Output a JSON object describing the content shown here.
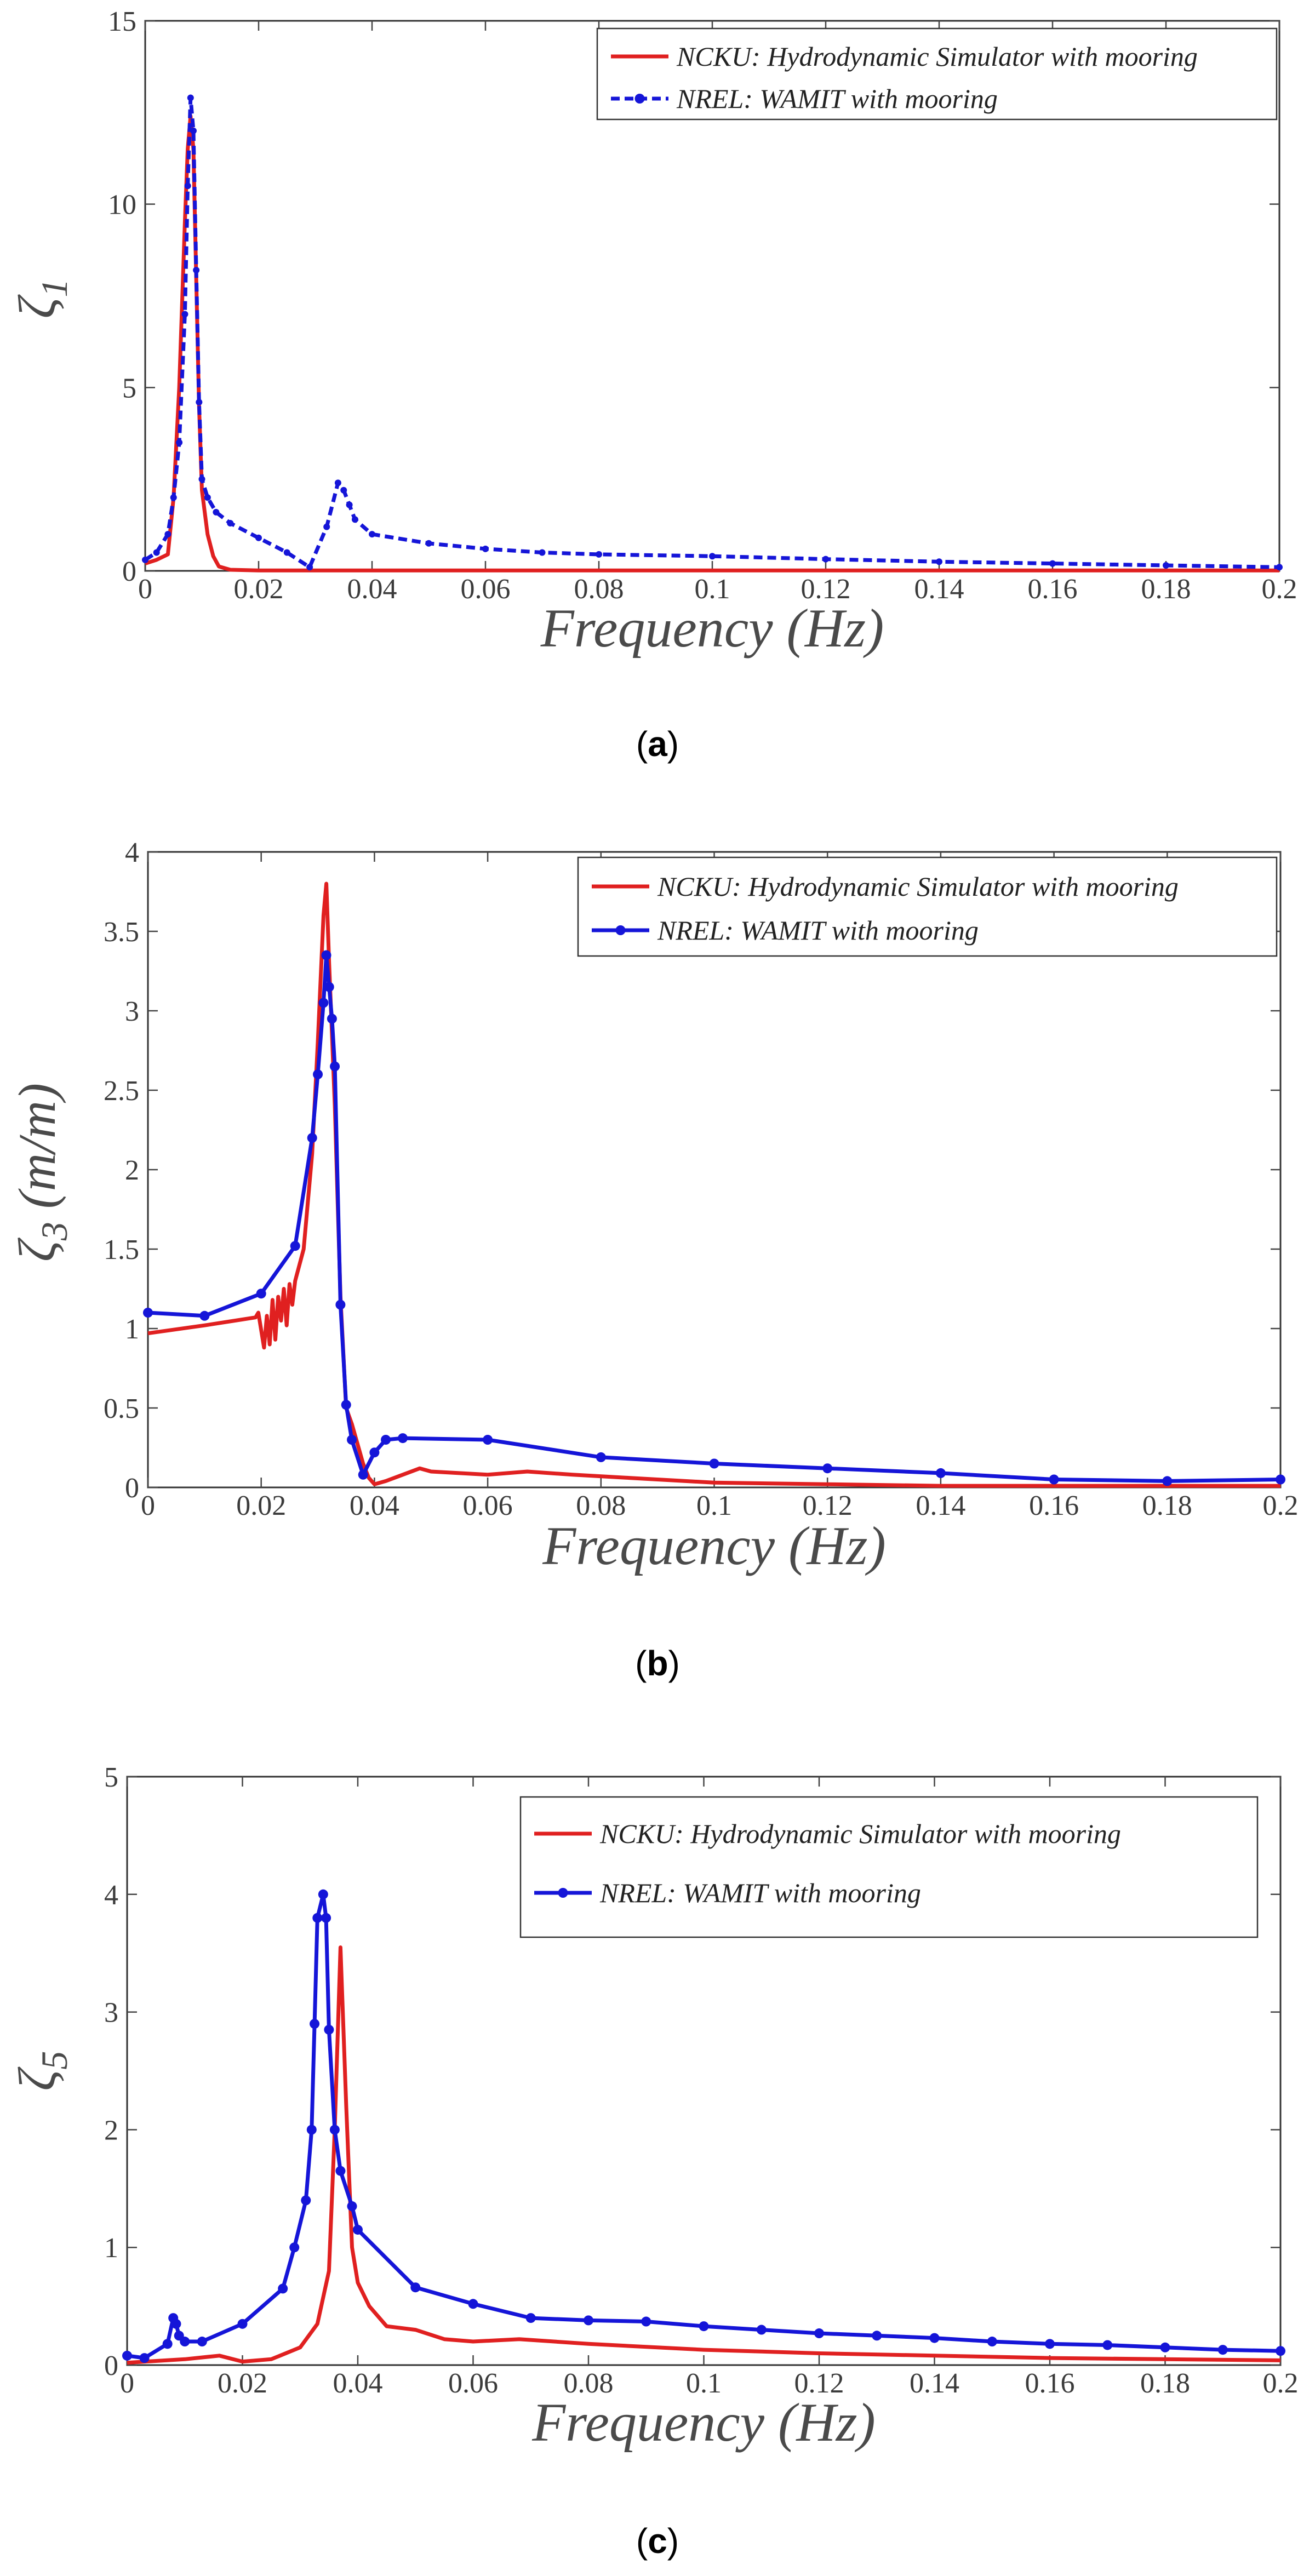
{
  "figure": {
    "panels": [
      "a",
      "b",
      "c"
    ]
  },
  "chart_data": [
    {
      "type": "line",
      "panel": "a",
      "caption_label": "a",
      "title": "",
      "xlabel": "Frequency (Hz)",
      "ylabel": "ζ₁",
      "ylabel_main": "ζ",
      "ylabel_sub": "1",
      "ylabel_unit": "",
      "xlim": [
        0,
        0.2
      ],
      "ylim": [
        0,
        15
      ],
      "xticks": [
        0,
        0.02,
        0.04,
        0.06,
        0.08,
        0.1,
        0.12,
        0.14,
        0.16,
        0.18,
        0.2
      ],
      "xtick_labels": [
        "0",
        "0.02",
        "0.04",
        "0.06",
        "0.08",
        "0.1",
        "0.12",
        "0.14",
        "0.16",
        "0.18",
        "0.2"
      ],
      "yticks": [
        0,
        5,
        10,
        15
      ],
      "ytick_labels": [
        "0",
        "5",
        "10",
        "15"
      ],
      "legend_position": "top-right",
      "series": [
        {
          "name": "NCKU: Hydrodynamic Simulator with mooring",
          "color": "#e02020",
          "style": "solid",
          "markers": false,
          "x": [
            0,
            0.002,
            0.004,
            0.005,
            0.006,
            0.007,
            0.0075,
            0.008,
            0.0085,
            0.009,
            0.0095,
            0.01,
            0.011,
            0.012,
            0.013,
            0.015,
            0.02,
            0.05,
            0.1,
            0.2
          ],
          "y": [
            0.2,
            0.3,
            0.45,
            2.0,
            5.0,
            9.5,
            11.5,
            12.4,
            11.5,
            8.0,
            4.5,
            2.2,
            1.0,
            0.4,
            0.12,
            0.03,
            0.01,
            0.01,
            0.01,
            0.01
          ]
        },
        {
          "name": "NREL: WAMIT with mooring",
          "color": "#1515d8",
          "style": "dashed",
          "markers": true,
          "x": [
            0,
            0.002,
            0.004,
            0.005,
            0.006,
            0.007,
            0.0075,
            0.008,
            0.0085,
            0.009,
            0.0095,
            0.01,
            0.011,
            0.0125,
            0.015,
            0.02,
            0.025,
            0.029,
            0.032,
            0.034,
            0.035,
            0.036,
            0.037,
            0.04,
            0.05,
            0.06,
            0.07,
            0.08,
            0.1,
            0.12,
            0.14,
            0.16,
            0.18,
            0.2
          ],
          "y": [
            0.3,
            0.5,
            1.0,
            2.0,
            3.5,
            7.0,
            10.5,
            12.9,
            12.0,
            8.2,
            4.6,
            2.5,
            2.0,
            1.6,
            1.3,
            0.9,
            0.5,
            0.1,
            1.2,
            2.4,
            2.2,
            1.8,
            1.4,
            1.0,
            0.75,
            0.6,
            0.5,
            0.45,
            0.4,
            0.32,
            0.25,
            0.2,
            0.15,
            0.1
          ]
        }
      ]
    },
    {
      "type": "line",
      "panel": "b",
      "caption_label": "b",
      "title": "",
      "xlabel": "Frequency (Hz)",
      "ylabel": "ζ₃ (m/m)",
      "ylabel_main": "ζ",
      "ylabel_sub": "3",
      "ylabel_unit": "(m/m)",
      "xlim": [
        0,
        0.2
      ],
      "ylim": [
        0,
        4
      ],
      "xticks": [
        0,
        0.02,
        0.04,
        0.06,
        0.08,
        0.1,
        0.12,
        0.14,
        0.16,
        0.18,
        0.2
      ],
      "xtick_labels": [
        "0",
        "0.02",
        "0.04",
        "0.06",
        "0.08",
        "0.1",
        "0.12",
        "0.14",
        "0.16",
        "0.18",
        "0.2"
      ],
      "yticks": [
        0,
        0.5,
        1,
        1.5,
        2,
        2.5,
        3,
        3.5,
        4
      ],
      "ytick_labels": [
        "0",
        "0.5",
        "1",
        "1.5",
        "2",
        "2.5",
        "3",
        "3.5",
        "4"
      ],
      "legend_position": "top-right",
      "series": [
        {
          "name": "NCKU: Hydrodynamic Simulator with mooring",
          "color": "#e02020",
          "style": "solid",
          "markers": false,
          "x": [
            0,
            0.01,
            0.019,
            0.0195,
            0.0205,
            0.021,
            0.0215,
            0.022,
            0.0225,
            0.023,
            0.0235,
            0.024,
            0.0245,
            0.025,
            0.0255,
            0.026,
            0.0275,
            0.029,
            0.03,
            0.031,
            0.0315,
            0.032,
            0.033,
            0.034,
            0.035,
            0.036,
            0.038,
            0.039,
            0.04,
            0.042,
            0.045,
            0.048,
            0.05,
            0.055,
            0.06,
            0.067,
            0.075,
            0.085,
            0.1,
            0.12,
            0.14,
            0.16,
            0.18,
            0.2
          ],
          "y": [
            0.97,
            1.02,
            1.07,
            1.1,
            0.88,
            1.08,
            0.9,
            1.18,
            0.93,
            1.2,
            1.05,
            1.25,
            1.02,
            1.28,
            1.15,
            1.3,
            1.5,
            2.1,
            2.8,
            3.6,
            3.8,
            3.3,
            2.4,
            1.2,
            0.5,
            0.4,
            0.15,
            0.06,
            0.02,
            0.04,
            0.08,
            0.12,
            0.1,
            0.09,
            0.08,
            0.1,
            0.08,
            0.06,
            0.03,
            0.02,
            0.01,
            0.01,
            0.01,
            0.01
          ]
        },
        {
          "name": "NREL: WAMIT with mooring",
          "color": "#1515d8",
          "style": "solid",
          "markers": true,
          "x": [
            0,
            0.01,
            0.02,
            0.026,
            0.029,
            0.03,
            0.031,
            0.0315,
            0.032,
            0.0325,
            0.033,
            0.034,
            0.035,
            0.036,
            0.038,
            0.04,
            0.042,
            0.045,
            0.06,
            0.08,
            0.1,
            0.12,
            0.14,
            0.16,
            0.18,
            0.2
          ],
          "y": [
            1.1,
            1.08,
            1.22,
            1.52,
            2.2,
            2.6,
            3.05,
            3.35,
            3.15,
            2.95,
            2.65,
            1.15,
            0.52,
            0.3,
            0.08,
            0.22,
            0.3,
            0.31,
            0.3,
            0.19,
            0.15,
            0.12,
            0.09,
            0.05,
            0.04,
            0.05
          ]
        }
      ]
    },
    {
      "type": "line",
      "panel": "c",
      "caption_label": "c",
      "title": "",
      "xlabel": "Frequency (Hz)",
      "ylabel": "ζ₅",
      "ylabel_main": "ζ",
      "ylabel_sub": "5",
      "ylabel_unit": "",
      "xlim": [
        0,
        0.2
      ],
      "ylim": [
        0,
        5
      ],
      "xticks": [
        0,
        0.02,
        0.04,
        0.06,
        0.08,
        0.1,
        0.12,
        0.14,
        0.16,
        0.18,
        0.2
      ],
      "xtick_labels": [
        "0",
        "0.02",
        "0.04",
        "0.06",
        "0.08",
        "0.1",
        "0.12",
        "0.14",
        "0.16",
        "0.18",
        "0.2"
      ],
      "yticks": [
        0,
        1,
        2,
        3,
        4,
        5
      ],
      "ytick_labels": [
        "0",
        "1",
        "2",
        "3",
        "4",
        "5"
      ],
      "legend_position": "top-right",
      "series": [
        {
          "name": "NCKU: Hydrodynamic Simulator with mooring",
          "color": "#e02020",
          "style": "solid",
          "markers": false,
          "x": [
            0,
            0.01,
            0.016,
            0.02,
            0.025,
            0.03,
            0.033,
            0.035,
            0.036,
            0.037,
            0.038,
            0.039,
            0.04,
            0.042,
            0.045,
            0.05,
            0.055,
            0.06,
            0.068,
            0.08,
            0.1,
            0.12,
            0.14,
            0.16,
            0.18,
            0.2
          ],
          "y": [
            0.02,
            0.05,
            0.08,
            0.03,
            0.05,
            0.15,
            0.35,
            0.8,
            2.0,
            3.55,
            2.2,
            1.0,
            0.7,
            0.5,
            0.33,
            0.3,
            0.22,
            0.2,
            0.22,
            0.18,
            0.13,
            0.1,
            0.08,
            0.06,
            0.05,
            0.04
          ]
        },
        {
          "name": "NREL: WAMIT with mooring",
          "color": "#1515d8",
          "style": "solid",
          "markers": true,
          "x": [
            0,
            0.003,
            0.007,
            0.008,
            0.0085,
            0.009,
            0.01,
            0.013,
            0.02,
            0.027,
            0.029,
            0.031,
            0.032,
            0.0325,
            0.033,
            0.034,
            0.0345,
            0.035,
            0.036,
            0.037,
            0.039,
            0.04,
            0.05,
            0.06,
            0.07,
            0.08,
            0.09,
            0.1,
            0.11,
            0.12,
            0.13,
            0.14,
            0.15,
            0.16,
            0.17,
            0.18,
            0.19,
            0.2
          ],
          "y": [
            0.08,
            0.06,
            0.18,
            0.4,
            0.35,
            0.25,
            0.2,
            0.2,
            0.35,
            0.65,
            1.0,
            1.4,
            2.0,
            2.9,
            3.8,
            4.0,
            3.8,
            2.85,
            2.0,
            1.65,
            1.35,
            1.15,
            0.66,
            0.52,
            0.4,
            0.38,
            0.37,
            0.33,
            0.3,
            0.27,
            0.25,
            0.23,
            0.2,
            0.18,
            0.17,
            0.15,
            0.13,
            0.12
          ]
        }
      ]
    }
  ]
}
